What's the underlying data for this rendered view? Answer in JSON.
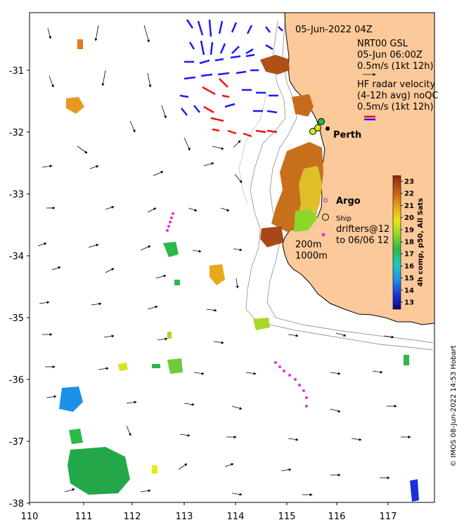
{
  "map": {
    "date_title": "05-Jun-2022 04Z",
    "x_ticks": [
      "110",
      "111",
      "112",
      "113",
      "114",
      "115",
      "116",
      "117"
    ],
    "y_ticks": [
      "-31",
      "-32",
      "-33",
      "-34",
      "-35",
      "-36",
      "-37",
      "-38"
    ],
    "lon_range": [
      110,
      117.95
    ],
    "lat_range": [
      -38,
      -30.2
    ],
    "colors": {
      "land": "#fbc99a",
      "coast": "#000000",
      "model_arrow": "#000000",
      "radar_blue": "#1a1aff",
      "radar_red": "#ee1111",
      "argo": "#cc33cc",
      "drifter": "#dd33dd"
    }
  },
  "legend": {
    "model_name": "NRT00 GSL",
    "model_time": "05-Jun 06:00Z",
    "model_scale": "0.5m/s (1kt 12h)",
    "radar_title": "HF radar velocity",
    "radar_sub": "(4-12h avg) noQC",
    "radar_scale": "0.5m/s (1kt 12h)"
  },
  "places": {
    "city": "Perth",
    "argo": "Argo",
    "ship": "Ship",
    "drifters_line1": "drifters@12",
    "drifters_line2": "to 06/06 12",
    "contour1": "200m",
    "contour2": "1000m"
  },
  "colorbar": {
    "ticks": [
      "23",
      "22",
      "21",
      "20",
      "19",
      "18",
      "17",
      "16",
      "15",
      "14",
      "13"
    ],
    "range": [
      12.5,
      23.5
    ],
    "label": "4h comp, p50, All Sats"
  },
  "credit": "© IMOS 08-Jun-2022 14:53 Hobart"
}
